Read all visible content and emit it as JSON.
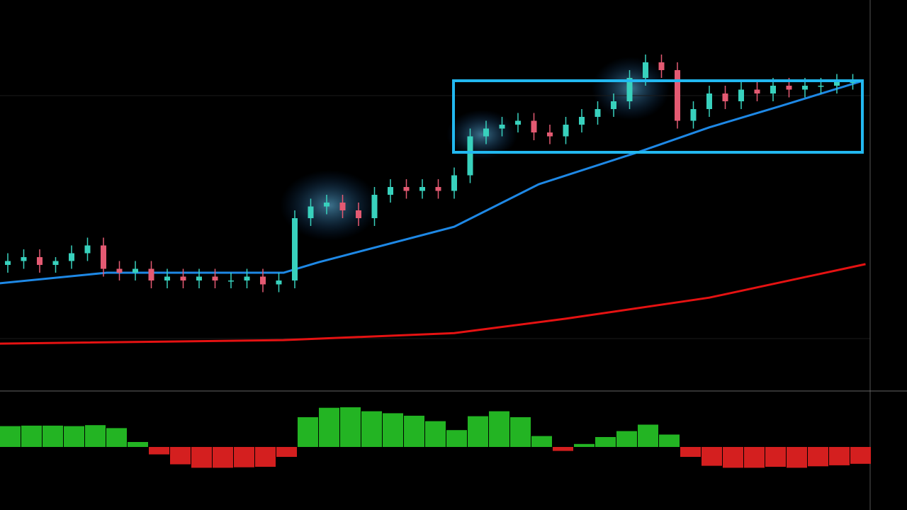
{
  "chart_data": [
    {
      "type": "candlestick",
      "ylim": [
        0,
        100
      ],
      "up_color": "#38d1bd",
      "down_color": "#e45a72",
      "open": [
        32,
        33,
        34,
        32,
        33,
        35,
        37,
        31,
        30,
        31,
        28,
        29,
        28,
        29,
        28,
        28,
        29,
        27,
        28,
        44,
        47,
        48,
        46,
        44,
        50,
        52,
        51,
        52,
        51,
        55,
        65,
        67,
        68,
        69,
        66,
        65,
        68,
        70,
        72,
        74,
        80,
        84,
        82,
        69,
        72,
        76,
        74,
        77,
        76,
        78,
        77,
        78,
        78,
        79
      ],
      "close": [
        33,
        34,
        32,
        33,
        35,
        37,
        31,
        30,
        31,
        28,
        29,
        28,
        29,
        28,
        28,
        29,
        27,
        28,
        44,
        47,
        48,
        46,
        44,
        50,
        52,
        51,
        52,
        51,
        55,
        65,
        67,
        68,
        69,
        66,
        65,
        68,
        70,
        72,
        74,
        80,
        84,
        82,
        69,
        72,
        76,
        74,
        77,
        76,
        78,
        77,
        78,
        78,
        79,
        79
      ],
      "high": [
        35,
        36,
        36,
        34,
        37,
        39,
        39,
        33,
        33,
        33,
        31,
        31,
        31,
        31,
        30,
        31,
        31,
        30,
        46,
        49,
        50,
        50,
        48,
        52,
        54,
        54,
        54,
        54,
        57,
        67,
        69,
        70,
        71,
        71,
        68,
        70,
        72,
        74,
        76,
        82,
        86,
        86,
        84,
        74,
        78,
        78,
        79,
        79,
        80,
        80,
        80,
        80,
        81,
        81
      ],
      "low": [
        30,
        31,
        30,
        30,
        31,
        33,
        29,
        28,
        28,
        26,
        26,
        26,
        26,
        26,
        26,
        26,
        25,
        25,
        26,
        42,
        45,
        44,
        42,
        42,
        48,
        49,
        49,
        49,
        49,
        53,
        63,
        65,
        66,
        64,
        63,
        63,
        66,
        68,
        70,
        72,
        78,
        80,
        67,
        67,
        70,
        72,
        72,
        74,
        74,
        75,
        75,
        76,
        76,
        77
      ],
      "lines": [
        {
          "color": "#1e88e5",
          "x": [
            -0.5,
            6.2,
            17.3,
            19.5,
            28,
            33.3,
            39.5,
            44,
            48.4,
            53.5
          ],
          "values": [
            27.3,
            30,
            30,
            32.7,
            41.8,
            52.7,
            60.9,
            67.3,
            72.7,
            79.1
          ]
        },
        {
          "color": "#e51212",
          "x": [
            -0.5,
            17.3,
            28,
            35,
            44,
            53.8
          ],
          "values": [
            11.8,
            12.7,
            14.5,
            18.2,
            23.6,
            32.2
          ]
        }
      ]
    },
    {
      "type": "histogram",
      "ylim": [
        -1,
        1
      ],
      "positive_color": "#23b423",
      "negative_color": "#d41f1f",
      "values": [
        0.42,
        0.43,
        0.43,
        0.42,
        0.44,
        0.38,
        0.1,
        -0.15,
        -0.35,
        -0.42,
        -0.42,
        -0.41,
        -0.4,
        -0.2,
        0.6,
        0.79,
        0.8,
        0.72,
        0.68,
        0.63,
        0.52,
        0.34,
        0.62,
        0.72,
        0.6,
        0.22,
        -0.08,
        0.06,
        0.2,
        0.32,
        0.45,
        0.25,
        -0.2,
        -0.38,
        -0.42,
        -0.42,
        -0.4,
        -0.42,
        -0.39,
        -0.37,
        -0.34
      ]
    }
  ]
}
